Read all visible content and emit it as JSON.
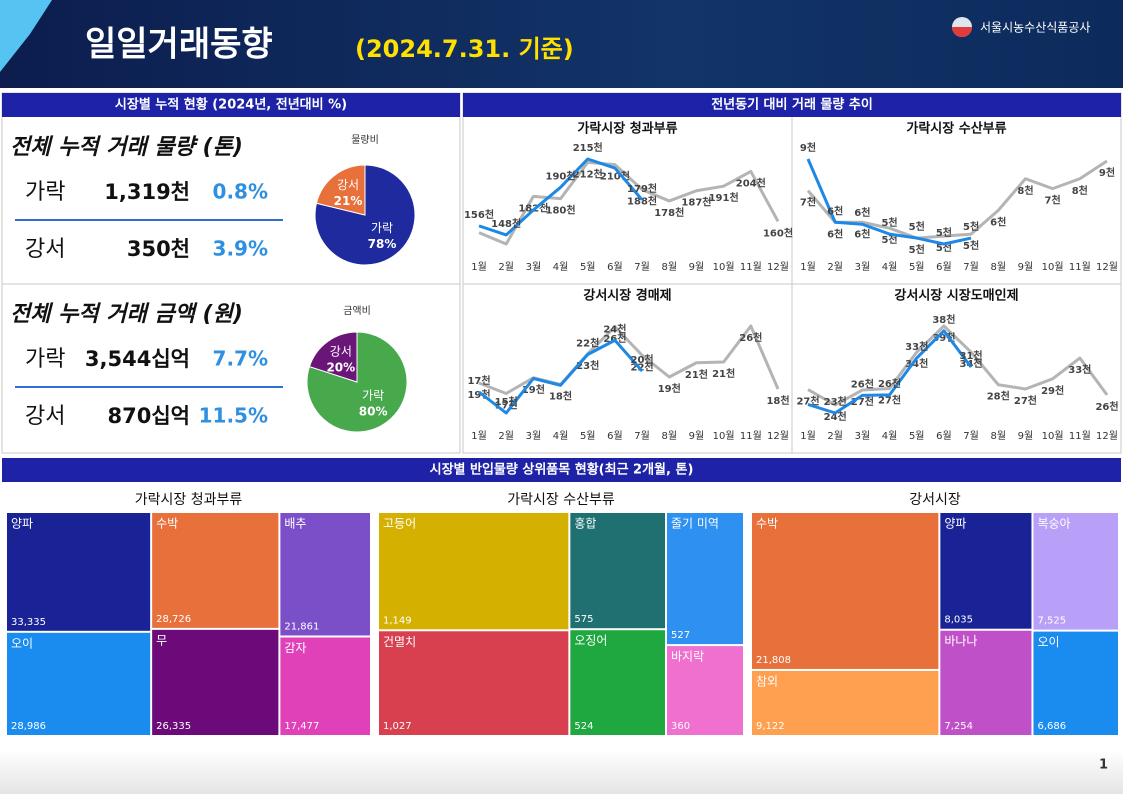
{
  "header": {
    "title": "일일거래동향",
    "subtitle": "(2024.7.31. 기준)",
    "logo": "서울시농수산식품공사",
    "page": "1"
  },
  "summary": {
    "title": "시장별 누적 현황 (2024년, 전년대비 %)",
    "sections": [
      {
        "title": "전체 누적 거래 물량 (톤)",
        "rows": [
          {
            "market": "가락",
            "amount": "1,319천",
            "change": "0.8%"
          },
          {
            "market": "강서",
            "amount": "350천",
            "change": "3.9%"
          }
        ]
      },
      {
        "title": "전체 누적 거래 금액 (원)",
        "rows": [
          {
            "market": "가락",
            "amount": "3,544십억",
            "change": "7.7%"
          },
          {
            "market": "강서",
            "amount": "870십억",
            "change": "11.5%"
          }
        ]
      }
    ]
  },
  "trend": {
    "title": "전년동기 대비 거래 물량 추이"
  },
  "top_items": {
    "title": "시장별 반입물량 상위품목 현황(최근 2개월, 톤)"
  },
  "chart_data": [
    {
      "type": "pie",
      "title": "물량비",
      "categories": [
        "가락",
        "강서"
      ],
      "values": [
        78,
        21
      ],
      "value_labels": [
        "78%",
        "21%"
      ],
      "colors": [
        "#1f2a9e",
        "#e8703a"
      ]
    },
    {
      "type": "pie",
      "title": "금액비",
      "categories": [
        "가락",
        "강서"
      ],
      "values": [
        80,
        20
      ],
      "value_labels": [
        "80%",
        "20%"
      ],
      "colors": [
        "#48a84c",
        "#6a1678"
      ]
    },
    {
      "type": "line",
      "title": "가락시장 청과부류",
      "categories": [
        "1월",
        "2월",
        "3월",
        "4월",
        "5월",
        "6월",
        "7월",
        "8월",
        "9월",
        "10월",
        "11월",
        "12월"
      ],
      "series": [
        {
          "color": "#b4b4b4",
          "values": [
            150,
            140,
            182,
            180,
            212,
            210,
            188,
            178,
            187,
            191,
            204,
            160
          ],
          "value_labels": [
            null,
            null,
            "182천",
            "180천",
            "212천",
            "210천",
            "188천",
            "178천",
            "187천",
            "191천",
            "204천",
            "160천"
          ]
        },
        {
          "color": "#1e88e5",
          "values": [
            156,
            148,
            170,
            190,
            215,
            207,
            179,
            null,
            null,
            null,
            null,
            null
          ],
          "value_labels": [
            "156천",
            "148천",
            null,
            "190천",
            "215천",
            null,
            "179천",
            null,
            null,
            null,
            null,
            null
          ]
        }
      ]
    },
    {
      "type": "line",
      "title": "가락시장 수산부류",
      "categories": [
        "1월",
        "2월",
        "3월",
        "4월",
        "5월",
        "6월",
        "7월",
        "8월",
        "9월",
        "10월",
        "11월",
        "12월"
      ],
      "series": [
        {
          "color": "#b4b4b4",
          "values": [
            7.2,
            5.6,
            5.6,
            5.3,
            4.8,
            4.9,
            5.0,
            6.2,
            7.8,
            7.3,
            7.8,
            8.7
          ],
          "value_labels": [
            "7천",
            "6천",
            "6천",
            "5천",
            "5천",
            "5천",
            "5천",
            "6천",
            "8천",
            "7천",
            "8천",
            "9천"
          ]
        },
        {
          "color": "#1e88e5",
          "values": [
            8.8,
            5.6,
            5.5,
            5.0,
            4.8,
            4.5,
            4.8,
            null,
            null,
            null,
            null,
            null
          ],
          "value_labels": [
            "9천",
            "6천",
            "6천",
            "5천",
            "5천",
            "5천",
            "5천",
            null,
            null,
            null,
            null,
            null
          ]
        }
      ]
    },
    {
      "type": "line",
      "title": "강서시장 경매제",
      "categories": [
        "1월",
        "2월",
        "3월",
        "4월",
        "5월",
        "6월",
        "7월",
        "8월",
        "9월",
        "10월",
        "11월",
        "12월"
      ],
      "series": [
        {
          "color": "#b4b4b4",
          "values": [
            18.6,
            17.2,
            19.3,
            18.4,
            22.5,
            26.1,
            22.3,
            19.4,
            21.3,
            21.4,
            26.2,
            17.8
          ],
          "value_labels": [
            "19천",
            "17천",
            "19천",
            "18천",
            "23천",
            "26천",
            "22천",
            "19천",
            "21천",
            "21천",
            "26천",
            "18천"
          ]
        },
        {
          "color": "#1e88e5",
          "values": [
            17.4,
            14.6,
            19.2,
            18.3,
            22.4,
            24.3,
            20.2,
            null,
            null,
            null,
            null,
            null
          ],
          "value_labels": [
            "17천",
            "15천",
            null,
            null,
            "22천",
            "24천",
            "20천",
            null,
            null,
            null,
            null,
            null
          ]
        }
      ]
    },
    {
      "type": "line",
      "title": "강서시장 시장도매인제",
      "categories": [
        "1월",
        "2월",
        "3월",
        "4월",
        "5월",
        "6월",
        "7월",
        "8월",
        "9월",
        "10월",
        "11월",
        "12월"
      ],
      "series": [
        {
          "color": "#b4b4b4",
          "values": [
            27.2,
            24.3,
            27.1,
            27.4,
            34.2,
            39.1,
            34.2,
            28.1,
            27.3,
            29.2,
            33.1,
            26.2
          ],
          "value_labels": [
            "27천",
            "24천",
            "27천",
            "27천",
            "34천",
            "39천",
            "34천",
            "28천",
            "27천",
            "29천",
            "33천",
            "26천"
          ]
        },
        {
          "color": "#1e88e5",
          "values": [
            24.4,
            22.8,
            26.1,
            26.2,
            33.1,
            38.2,
            31.4,
            null,
            null,
            null,
            null,
            null
          ],
          "value_labels": [
            null,
            "23천",
            "26천",
            "26천",
            "33천",
            "38천",
            "31천",
            null,
            null,
            null,
            null,
            null
          ]
        }
      ]
    },
    {
      "type": "treemap",
      "title": "가락시장 청과부류",
      "categories": [
        "양파",
        "오이",
        "수박",
        "무",
        "배추",
        "감자"
      ],
      "values": [
        33335,
        28986,
        28726,
        26335,
        21861,
        17477
      ],
      "value_labels": [
        "33,335",
        "28,986",
        "28,726",
        "26,335",
        "21,861",
        "17,477"
      ],
      "colors": [
        "#1a2396",
        "#1a8cf0",
        "#e8703a",
        "#6b0a78",
        "#7b4fc8",
        "#e040b8"
      ]
    },
    {
      "type": "treemap",
      "title": "가락시장 수산부류",
      "categories": [
        "고등어",
        "건멸치",
        "홍합",
        "오징어",
        "줄기 미역",
        "바지락"
      ],
      "values": [
        1149,
        1027,
        575,
        524,
        527,
        360
      ],
      "value_labels": [
        "1,149",
        "1,027",
        "575",
        "524",
        "527",
        "360"
      ],
      "colors": [
        "#d4b000",
        "#d84050",
        "#1f7070",
        "#20a840",
        "#2e90f0",
        "#f070d0"
      ]
    },
    {
      "type": "treemap",
      "title": "강서시장",
      "categories": [
        "수박",
        "참외",
        "양파",
        "바나나",
        "복숭아",
        "오이"
      ],
      "values": [
        21808,
        9122,
        8035,
        7254,
        7525,
        6686
      ],
      "value_labels": [
        "21,808",
        "9,122",
        "8,035",
        "7,254",
        "7,525",
        "6,686"
      ],
      "colors": [
        "#e8703a",
        "#ffa050",
        "#1a2396",
        "#c050c8",
        "#b8a0f8",
        "#1a8cf0"
      ]
    }
  ]
}
